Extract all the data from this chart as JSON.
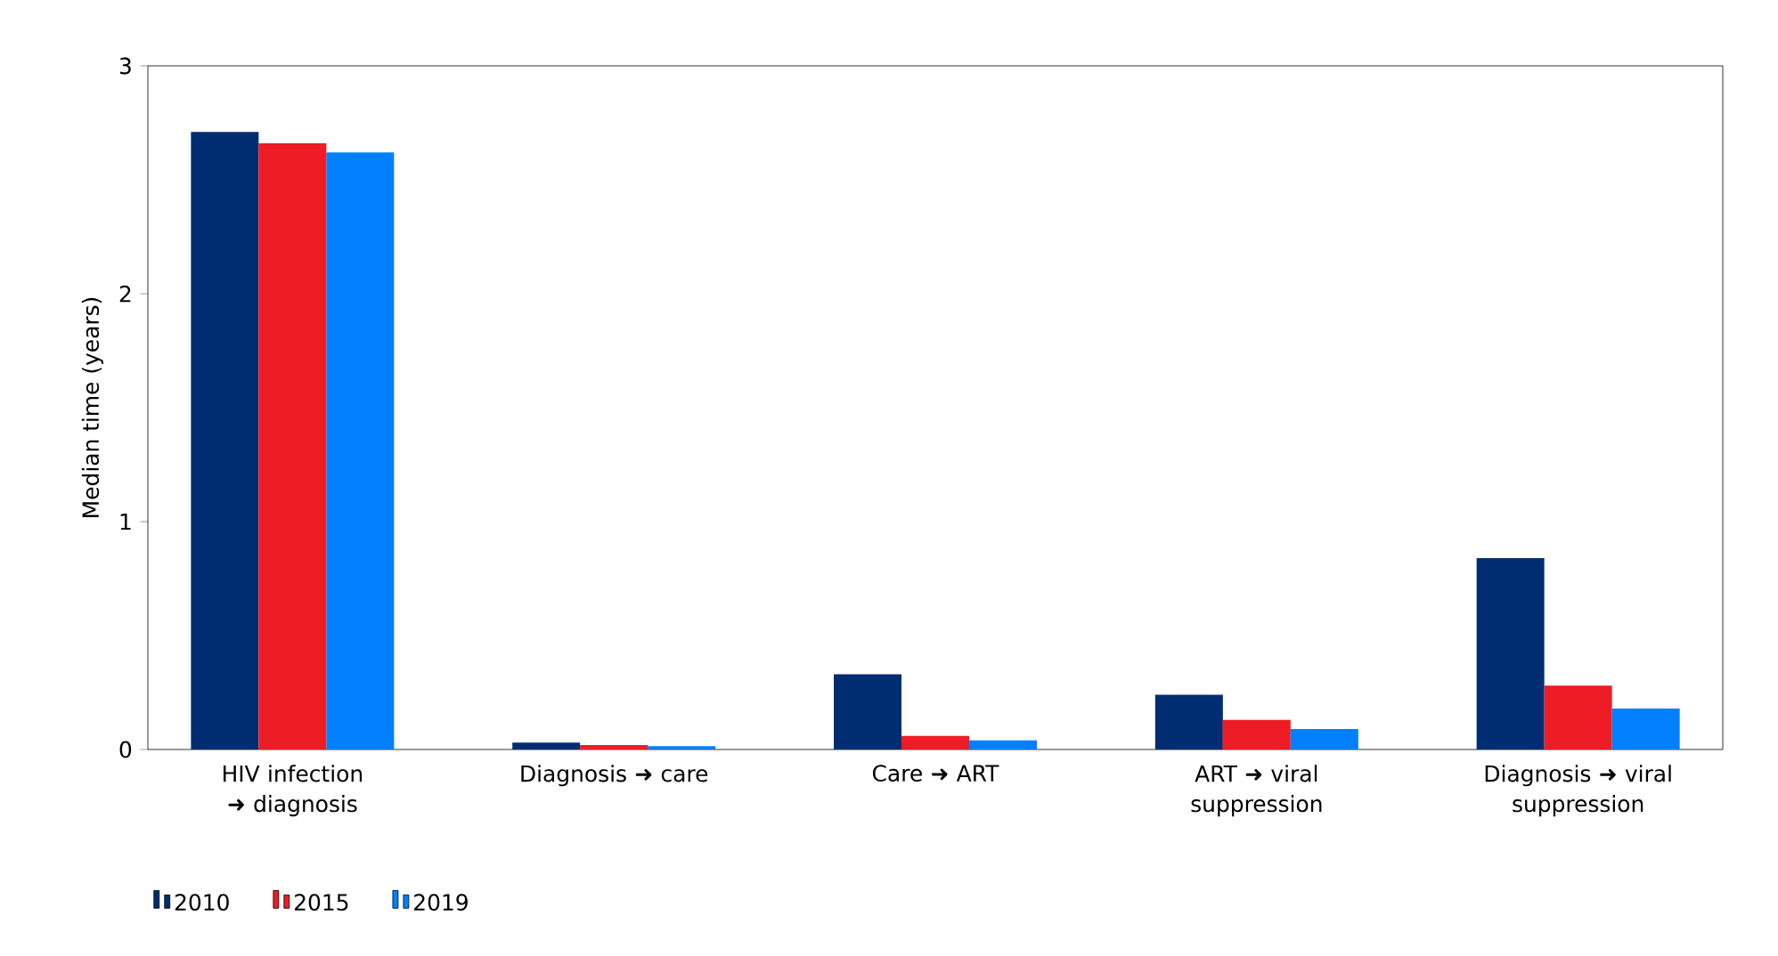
{
  "chart_data": {
    "type": "bar",
    "ylabel": "Median time (years)",
    "categories": [
      "HIV infection ➜ diagnosis",
      "Diagnosis ➜ care",
      "Care ➜ ART",
      "ART ➜  viral suppression",
      "Diagnosis ➜ viral suppression"
    ],
    "series": [
      {
        "name": "2010",
        "color": "#002d72",
        "values": [
          2.71,
          0.03,
          0.33,
          0.24,
          0.84
        ]
      },
      {
        "name": "2015",
        "color": "#ee1c25",
        "values": [
          2.66,
          0.02,
          0.06,
          0.13,
          0.28
        ]
      },
      {
        "name": "2019",
        "color": "#0080ff",
        "values": [
          2.62,
          0.015,
          0.04,
          0.09,
          0.18
        ]
      }
    ],
    "ylim": [
      0,
      3
    ],
    "yticks": [
      0,
      1,
      2,
      3
    ],
    "legend": "bottom"
  }
}
